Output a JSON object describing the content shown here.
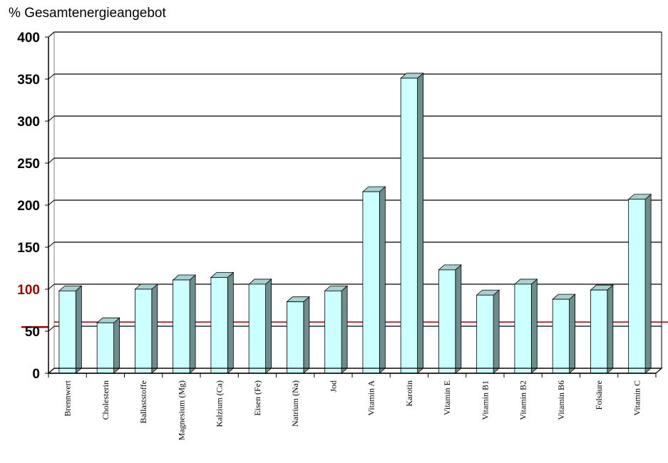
{
  "chart_data": {
    "type": "bar",
    "title": "% Gesamtenergieangebot",
    "categories": [
      "Brennwert",
      "Cholesterin",
      "Ballaststoffe",
      "Magnesium (Mg)",
      "Kalzium (Ca)",
      "Eisen (Fe)",
      "Natrium (Na)",
      "Jod",
      "Vitamin A",
      "Karotin",
      "Vitamin E",
      "Vitamin B1",
      "Vitamin B2",
      "Vitamin B6",
      "Folsäure",
      "Vitamin C"
    ],
    "values": [
      98,
      60,
      100,
      111,
      114,
      106,
      85,
      98,
      216,
      351,
      123,
      93,
      106,
      88,
      99,
      207
    ],
    "yticks": [
      "0",
      "50",
      "100",
      "150",
      "200",
      "250",
      "300",
      "350",
      "400"
    ],
    "ylim": [
      0,
      400
    ],
    "reference_line": 55,
    "grid": true,
    "highlight_tick": "100",
    "colors": {
      "bar_front": "#ccffff",
      "bar_side": "#6e8e8e",
      "bar_top": "#a8d0d0",
      "reference_line": "#990000",
      "highlight_tick": "#990000",
      "grid": "#000000"
    }
  }
}
